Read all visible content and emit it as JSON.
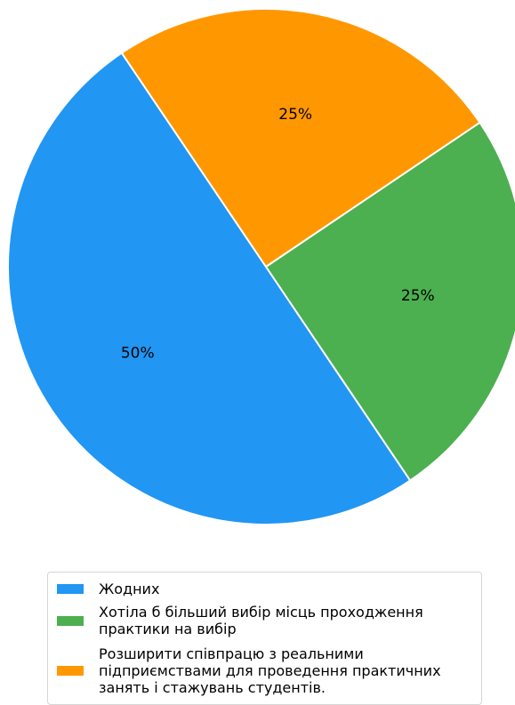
{
  "chart_data": {
    "type": "pie",
    "slices": [
      {
        "label": "Жодних",
        "value": 50,
        "percent_label": "50%",
        "color": "#2196F3"
      },
      {
        "label": "Хотіла б більший вибір місць проходження\nпрактики на вибір",
        "value": 25,
        "percent_label": "25%",
        "color": "#4CAF50"
      },
      {
        "label": "Розширити співпрацю з реальними\nпідприємствами для проведення практичних\nзанять і стажувань студентів.",
        "value": 25,
        "percent_label": "25%",
        "color": "#FF9800"
      }
    ],
    "start_angle_deg": 124,
    "direction": "counterclockwise",
    "legend_position": "bottom"
  }
}
